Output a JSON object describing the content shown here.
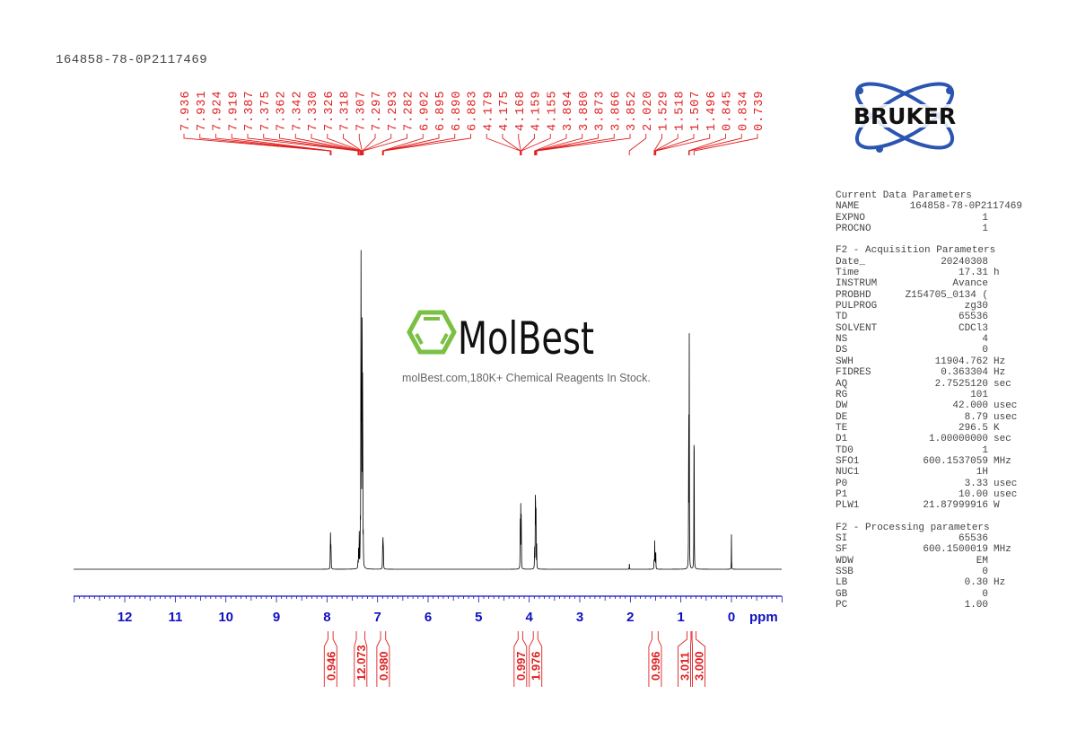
{
  "sample_id": "164858-78-0P2117469",
  "logos": {
    "bruker": "BRUKER",
    "molbest": "MolBest",
    "molbest_tagline": "molBest.com,180K+ Chemical Reagents In Stock."
  },
  "colors": {
    "spectrum": "#000000",
    "annotation": "#e02020",
    "axis": "#1010c0",
    "bruker_ring": "#2a55b0",
    "molbest_green": "#7ac143"
  },
  "parameters": {
    "sections": [
      {
        "title": "Current Data Parameters",
        "rows": [
          {
            "k": "NAME",
            "v": "164858-78-0P2117469",
            "u": ""
          },
          {
            "k": "EXPNO",
            "v": "1",
            "u": ""
          },
          {
            "k": "PROCNO",
            "v": "1",
            "u": ""
          }
        ]
      },
      {
        "title": "F2 - Acquisition Parameters",
        "rows": [
          {
            "k": "Date_",
            "v": "20240308",
            "u": ""
          },
          {
            "k": "Time",
            "v": "17.31",
            "u": "h"
          },
          {
            "k": "INSTRUM",
            "v": "Avance",
            "u": ""
          },
          {
            "k": "PROBHD",
            "v": "Z154705_0134 (",
            "u": ""
          },
          {
            "k": "PULPROG",
            "v": "zg30",
            "u": ""
          },
          {
            "k": "TD",
            "v": "65536",
            "u": ""
          },
          {
            "k": "SOLVENT",
            "v": "CDCl3",
            "u": ""
          },
          {
            "k": "NS",
            "v": "4",
            "u": ""
          },
          {
            "k": "DS",
            "v": "0",
            "u": ""
          },
          {
            "k": "SWH",
            "v": "11904.762",
            "u": "Hz"
          },
          {
            "k": "FIDRES",
            "v": "0.363304",
            "u": "Hz"
          },
          {
            "k": "AQ",
            "v": "2.7525120",
            "u": "sec"
          },
          {
            "k": "RG",
            "v": "101",
            "u": ""
          },
          {
            "k": "DW",
            "v": "42.000",
            "u": "usec"
          },
          {
            "k": "DE",
            "v": "8.79",
            "u": "usec"
          },
          {
            "k": "TE",
            "v": "296.5",
            "u": "K"
          },
          {
            "k": "D1",
            "v": "1.00000000",
            "u": "sec"
          },
          {
            "k": "TD0",
            "v": "1",
            "u": ""
          },
          {
            "k": "SFO1",
            "v": "600.1537059",
            "u": "MHz"
          },
          {
            "k": "NUC1",
            "v": "1H",
            "u": ""
          },
          {
            "k": "P0",
            "v": "3.33",
            "u": "usec"
          },
          {
            "k": "P1",
            "v": "10.00",
            "u": "usec"
          },
          {
            "k": "PLW1",
            "v": "21.87999916",
            "u": "W"
          }
        ]
      },
      {
        "title": "F2 - Processing parameters",
        "rows": [
          {
            "k": "SI",
            "v": "65536",
            "u": ""
          },
          {
            "k": "SF",
            "v": "600.1500019",
            "u": "MHz"
          },
          {
            "k": "WDW",
            "v": "EM",
            "u": ""
          },
          {
            "k": "SSB",
            "v": "0",
            "u": ""
          },
          {
            "k": "LB",
            "v": "0.30",
            "u": "Hz"
          },
          {
            "k": "GB",
            "v": "0",
            "u": ""
          },
          {
            "k": "PC",
            "v": "1.00",
            "u": ""
          }
        ]
      }
    ]
  },
  "chart_data": {
    "type": "line",
    "xlabel": "ppm",
    "xlim": [
      13.0,
      -1.0
    ],
    "x_reversed": true,
    "x_ticks": [
      "12",
      "11",
      "10",
      "9",
      "8",
      "7",
      "6",
      "5",
      "4",
      "3",
      "2",
      "1",
      "0"
    ],
    "grid": false,
    "peak_labels": [
      "7.936",
      "7.931",
      "7.924",
      "7.919",
      "7.387",
      "7.375",
      "7.362",
      "7.342",
      "7.330",
      "7.326",
      "7.318",
      "7.307",
      "7.297",
      "7.293",
      "7.282",
      "6.902",
      "6.895",
      "6.890",
      "6.883",
      "4.179",
      "4.175",
      "4.168",
      "4.159",
      "4.155",
      "3.894",
      "3.880",
      "3.873",
      "3.866",
      "3.852",
      "2.020",
      "1.529",
      "1.518",
      "1.507",
      "1.496",
      "0.845",
      "0.834",
      "0.739"
    ],
    "peaks": [
      {
        "ppm": 7.936,
        "intensity": 4
      },
      {
        "ppm": 7.931,
        "intensity": 8
      },
      {
        "ppm": 7.924,
        "intensity": 8
      },
      {
        "ppm": 7.919,
        "intensity": 4
      },
      {
        "ppm": 7.387,
        "intensity": 3
      },
      {
        "ppm": 7.375,
        "intensity": 6
      },
      {
        "ppm": 7.362,
        "intensity": 10
      },
      {
        "ppm": 7.342,
        "intensity": 12
      },
      {
        "ppm": 7.33,
        "intensity": 60
      },
      {
        "ppm": 7.326,
        "intensity": 75
      },
      {
        "ppm": 7.318,
        "intensity": 30
      },
      {
        "ppm": 7.307,
        "intensity": 100
      },
      {
        "ppm": 7.297,
        "intensity": 40
      },
      {
        "ppm": 7.293,
        "intensity": 30
      },
      {
        "ppm": 7.282,
        "intensity": 8
      },
      {
        "ppm": 6.902,
        "intensity": 4
      },
      {
        "ppm": 6.895,
        "intensity": 9
      },
      {
        "ppm": 6.89,
        "intensity": 9
      },
      {
        "ppm": 6.883,
        "intensity": 4
      },
      {
        "ppm": 4.179,
        "intensity": 7
      },
      {
        "ppm": 4.175,
        "intensity": 12
      },
      {
        "ppm": 4.168,
        "intensity": 16
      },
      {
        "ppm": 4.159,
        "intensity": 12
      },
      {
        "ppm": 4.155,
        "intensity": 6
      },
      {
        "ppm": 3.894,
        "intensity": 8
      },
      {
        "ppm": 3.88,
        "intensity": 20
      },
      {
        "ppm": 3.873,
        "intensity": 20
      },
      {
        "ppm": 3.866,
        "intensity": 14
      },
      {
        "ppm": 3.852,
        "intensity": 6
      },
      {
        "ppm": 2.02,
        "intensity": 1.5
      },
      {
        "ppm": 1.529,
        "intensity": 4
      },
      {
        "ppm": 1.518,
        "intensity": 7
      },
      {
        "ppm": 1.507,
        "intensity": 7
      },
      {
        "ppm": 1.496,
        "intensity": 4
      },
      {
        "ppm": 0.845,
        "intensity": 60
      },
      {
        "ppm": 0.834,
        "intensity": 60
      },
      {
        "ppm": 0.739,
        "intensity": 63
      },
      {
        "ppm": 0.0,
        "intensity": 9
      }
    ],
    "integrals": [
      {
        "from": 7.98,
        "to": 7.88,
        "value": "0.946"
      },
      {
        "from": 7.42,
        "to": 7.25,
        "value": "12.073"
      },
      {
        "from": 6.94,
        "to": 6.84,
        "value": "0.980"
      },
      {
        "from": 4.22,
        "to": 4.13,
        "value": "0.997"
      },
      {
        "from": 3.92,
        "to": 3.83,
        "value": "1.976"
      },
      {
        "from": 1.57,
        "to": 1.45,
        "value": "0.996"
      },
      {
        "from": 0.88,
        "to": 0.8,
        "value": "3.011"
      },
      {
        "from": 0.78,
        "to": 0.7,
        "value": "3.000"
      }
    ]
  }
}
